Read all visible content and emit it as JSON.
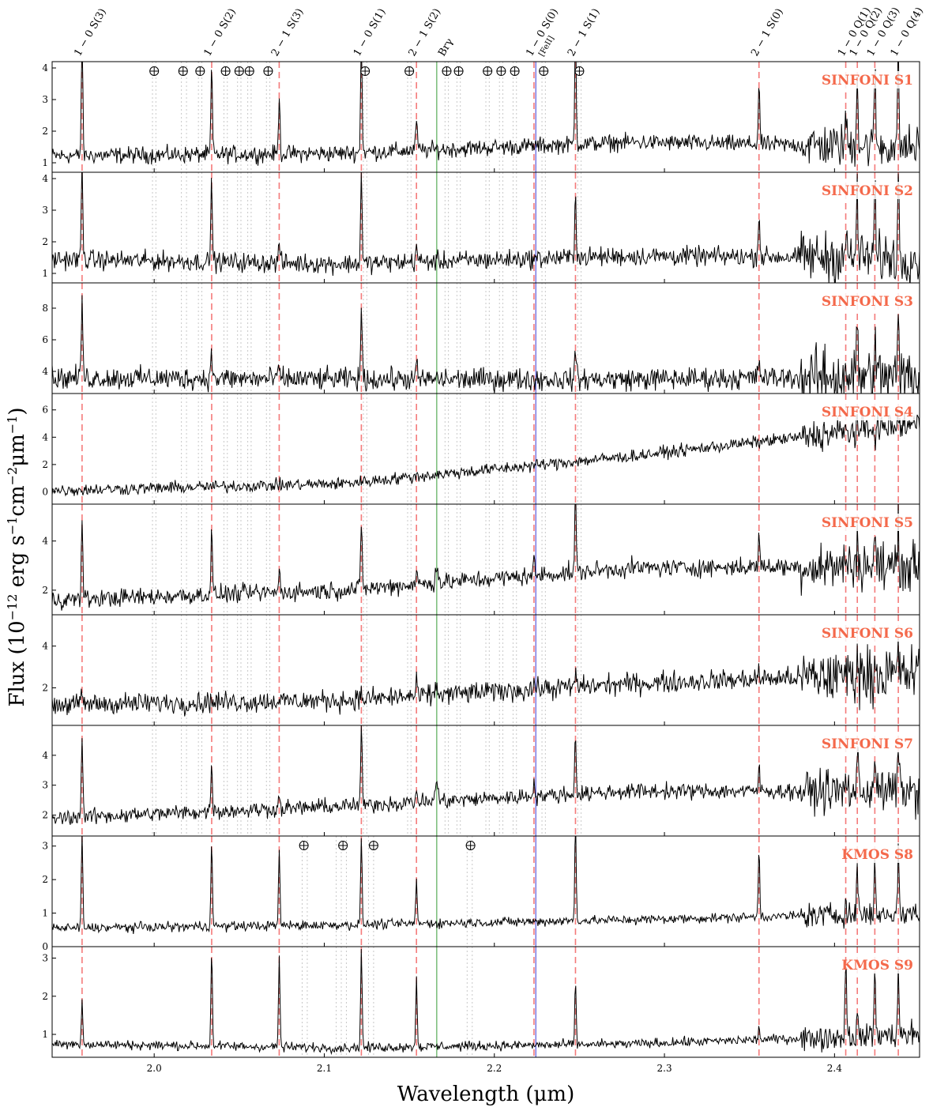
{
  "figure": {
    "xlabel": "Wavelength (μm)",
    "ylabel_main": "Flux (10",
    "ylabel_exp1": "−12",
    "ylabel_mid1": " erg s",
    "ylabel_exp2": "−1",
    "ylabel_mid2": "cm",
    "ylabel_exp3": "−2",
    "ylabel_mid3": "μm",
    "ylabel_exp4": "−1",
    "ylabel_end": ")"
  },
  "colors": {
    "h2_line": "#f47a7a",
    "bry_line": "#80c080",
    "feii_line": "#7070e0",
    "telluric": "#c8c8c8",
    "spectrum": "#000000",
    "panel_label": "#f4694b"
  },
  "icons": {
    "telluric_marker": "circled-plus-icon"
  },
  "chart_data": {
    "type": "line",
    "xlim": [
      1.94,
      2.45
    ],
    "x_ticks": [
      2.0,
      2.1,
      2.2,
      2.3,
      2.4
    ],
    "x_tick_labels": [
      "2.0",
      "2.1",
      "2.2",
      "2.3",
      "2.4"
    ],
    "emission_lines": [
      {
        "label": "1 − 0 S(3)",
        "wavelength": 1.9576,
        "kind": "h2"
      },
      {
        "label": "1 − 0 S(2)",
        "wavelength": 2.0338,
        "kind": "h2"
      },
      {
        "label": "2 − 1 S(3)",
        "wavelength": 2.0735,
        "kind": "h2"
      },
      {
        "label": "1 − 0 S(1)",
        "wavelength": 2.1218,
        "kind": "h2"
      },
      {
        "label": "2 − 1 S(2)",
        "wavelength": 2.1542,
        "kind": "h2"
      },
      {
        "label": "Brγ",
        "wavelength": 2.1661,
        "kind": "bry"
      },
      {
        "label": "1 − 0 S(0)",
        "wavelength": 2.2233,
        "kind": "h2"
      },
      {
        "label": "[FeII]",
        "wavelength": 2.2244,
        "kind": "feii"
      },
      {
        "label": "2 − 1 S(1)",
        "wavelength": 2.2477,
        "kind": "h2"
      },
      {
        "label": "2 − 1 S(0)",
        "wavelength": 2.3556,
        "kind": "h2"
      },
      {
        "label": "1 − 0 Q(1)",
        "wavelength": 2.4066,
        "kind": "h2"
      },
      {
        "label": "1 − 0 Q(2)",
        "wavelength": 2.4134,
        "kind": "h2"
      },
      {
        "label": "1 − 0 Q(3)",
        "wavelength": 2.4237,
        "kind": "h2"
      },
      {
        "label": "1 − 0 Q(4)",
        "wavelength": 2.4375,
        "kind": "h2"
      }
    ],
    "telluric_sinfoni": [
      1.999,
      2.001,
      2.016,
      2.019,
      2.026,
      2.028,
      2.041,
      2.043,
      2.049,
      2.051,
      2.055,
      2.057,
      2.066,
      2.068,
      2.123,
      2.125,
      2.149,
      2.151,
      2.171,
      2.173,
      2.178,
      2.18,
      2.195,
      2.197,
      2.203,
      2.205,
      2.211,
      2.213,
      2.228,
      2.23,
      2.249,
      2.251
    ],
    "telluric_sinfoni_markers": [
      2.0,
      2.017,
      2.027,
      2.042,
      2.05,
      2.056,
      2.067,
      2.124,
      2.15,
      2.172,
      2.179,
      2.196,
      2.204,
      2.212,
      2.229,
      2.25
    ],
    "telluric_kmos": [
      2.087,
      2.09,
      2.107,
      2.11,
      2.113,
      2.126,
      2.129,
      2.184,
      2.187
    ],
    "telluric_kmos_markers": [
      2.088,
      2.111,
      2.129,
      2.186
    ],
    "panels": [
      {
        "name": "SINFONI S1",
        "ylim": [
          0.7,
          4.2
        ],
        "yticks": [
          1,
          2,
          3,
          4
        ],
        "continuum": [
          1.22,
          1.3,
          1.65,
          1.5
        ],
        "noise": 0.13,
        "peaks": [
          3.8,
          2.8,
          1.9,
          3.8,
          1.1,
          0,
          3.8,
          2.0,
          1.0,
          2.5,
          2.5,
          3.0,
          3.8
        ],
        "telluric_set": "sinfoni"
      },
      {
        "name": "SINFONI S2",
        "ylim": [
          0.7,
          4.2
        ],
        "yticks": [
          1,
          2,
          3,
          4
        ],
        "continuum": [
          1.45,
          1.3,
          1.55,
          1.5
        ],
        "noise": 0.15,
        "peaks": [
          3.2,
          2.7,
          0.7,
          2.9,
          0.6,
          0,
          2.2,
          1.5,
          0.6,
          2.2,
          2.2,
          2.5,
          2.5
        ],
        "telluric_set": "sinfoni"
      },
      {
        "name": "SINFONI S3",
        "ylim": [
          2.6,
          9.6
        ],
        "yticks": [
          4,
          6,
          8
        ],
        "continuum": [
          3.6,
          3.5,
          3.5,
          3.7
        ],
        "noise": 0.35,
        "peaks": [
          5.3,
          1.5,
          0.8,
          4.6,
          0.9,
          0,
          2.0,
          1.3,
          0.8,
          3.5,
          2.5,
          3.5,
          1.5
        ],
        "telluric_set": "sinfoni"
      },
      {
        "name": "SINFONI S4",
        "ylim": [
          -0.9,
          7.2
        ],
        "yticks": [
          0,
          2,
          4,
          6
        ],
        "continuum": [
          0.1,
          0.6,
          2.6,
          5.0
        ],
        "noise": 0.22,
        "peaks": [
          0,
          0,
          0,
          0,
          0,
          0,
          0,
          0,
          0,
          0,
          0,
          0,
          0
        ],
        "telluric_set": "sinfoni"
      },
      {
        "name": "SINFONI S5",
        "ylim": [
          1.0,
          5.5
        ],
        "yticks": [
          2,
          4
        ],
        "continuum": [
          1.6,
          2.0,
          2.9,
          3.0
        ],
        "noise": 0.18,
        "peaks": [
          3.3,
          2.6,
          0.9,
          2.8,
          0.6,
          0.6,
          3.2,
          1.5,
          0.5,
          1.2,
          1.3,
          1.5,
          1.6
        ],
        "telluric_set": "sinfoni"
      },
      {
        "name": "SINFONI S6",
        "ylim": [
          0.2,
          5.5
        ],
        "yticks": [
          2,
          4
        ],
        "continuum": [
          1.2,
          1.4,
          2.2,
          2.7
        ],
        "noise": 0.25,
        "peaks": [
          0.4,
          0.2,
          0.2,
          0.2,
          0.5,
          0.3,
          0.6,
          0.4,
          0.5,
          0.9,
          0.7,
          0.9,
          0.9
        ],
        "telluric_set": "sinfoni"
      },
      {
        "name": "SINFONI S7",
        "ylim": [
          1.3,
          5.0
        ],
        "yticks": [
          2,
          3,
          4
        ],
        "continuum": [
          1.9,
          2.3,
          2.8,
          2.8
        ],
        "noise": 0.13,
        "peaks": [
          2.9,
          1.8,
          0.4,
          2.6,
          0.4,
          0.6,
          2.0,
          0.8,
          0.3,
          1.3,
          1.5,
          1.8,
          1.2
        ],
        "telluric_set": "sinfoni"
      },
      {
        "name": "KMOS S8",
        "ylim": [
          0.0,
          3.3
        ],
        "yticks": [
          0,
          1,
          2,
          3
        ],
        "continuum": [
          0.55,
          0.65,
          0.8,
          1.0
        ],
        "noise": 0.07,
        "peaks": [
          2.8,
          2.6,
          2.2,
          2.5,
          1.3,
          0,
          2.9,
          2.1,
          0.5,
          1.5,
          1.5,
          1.8,
          1.5
        ],
        "telluric_set": "kmos"
      },
      {
        "name": "KMOS S9",
        "ylim": [
          0.4,
          3.3
        ],
        "yticks": [
          1,
          2,
          3
        ],
        "continuum": [
          0.75,
          0.65,
          0.75,
          1.0
        ],
        "noise": 0.06,
        "peaks": [
          1.2,
          2.5,
          2.4,
          2.6,
          1.8,
          0,
          1.6,
          0.3,
          2.2,
          0.5,
          1.8,
          1.8,
          1.6
        ],
        "telluric_set": "kmos"
      }
    ]
  }
}
